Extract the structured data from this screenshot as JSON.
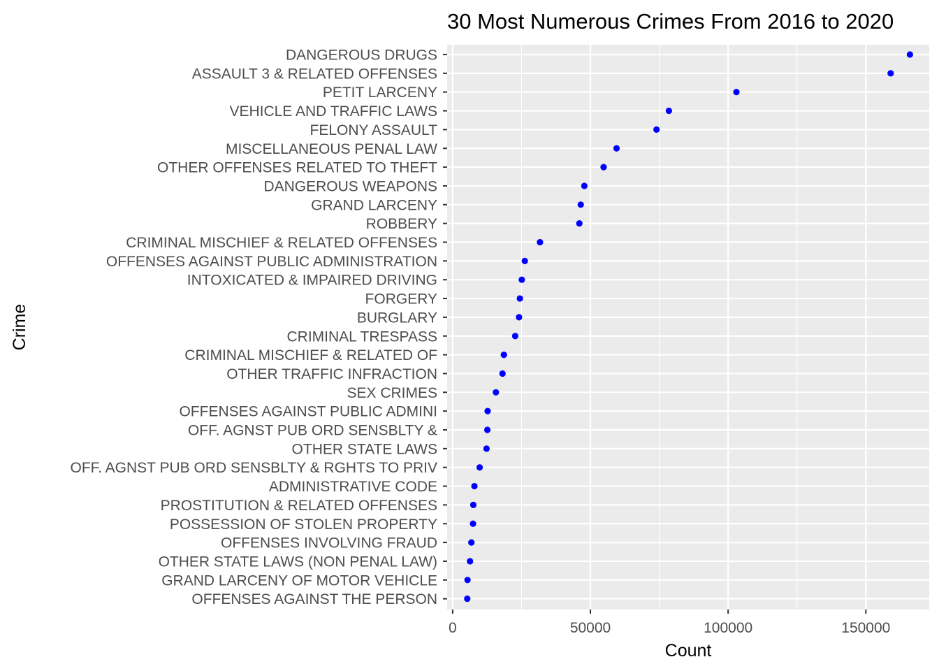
{
  "chart_data": {
    "type": "scatter",
    "title": "30 Most Numerous Crimes From 2016 to 2020",
    "xlabel": "Count",
    "ylabel": "Crime",
    "xlim": [
      -2000,
      173000
    ],
    "x_ticks": [
      0,
      50000,
      100000,
      150000
    ],
    "x_tick_labels": [
      "0",
      "50000",
      "100000",
      "150000"
    ],
    "grid": true,
    "point_color": "#0000ff",
    "panel_color": "#ebebeb",
    "categories": [
      "DANGEROUS DRUGS",
      "ASSAULT 3 & RELATED OFFENSES",
      "PETIT LARCENY",
      "VEHICLE AND TRAFFIC LAWS",
      "FELONY ASSAULT",
      "MISCELLANEOUS PENAL LAW",
      "OTHER OFFENSES RELATED TO THEFT",
      "DANGEROUS WEAPONS",
      "GRAND LARCENY",
      "ROBBERY",
      "CRIMINAL MISCHIEF & RELATED OFFENSES",
      "OFFENSES AGAINST PUBLIC ADMINISTRATION",
      "INTOXICATED & IMPAIRED DRIVING",
      "FORGERY",
      "BURGLARY",
      "CRIMINAL TRESPASS",
      "CRIMINAL MISCHIEF & RELATED OF",
      "OTHER TRAFFIC INFRACTION",
      "SEX CRIMES",
      "OFFENSES AGAINST PUBLIC ADMINI",
      "OFF. AGNST PUB ORD SENSBLTY &",
      "OTHER STATE LAWS",
      "OFF. AGNST PUB ORD SENSBLTY & RGHTS TO PRIV",
      "ADMINISTRATIVE CODE",
      "PROSTITUTION & RELATED OFFENSES",
      "POSSESSION OF STOLEN PROPERTY",
      "OFFENSES INVOLVING FRAUD",
      "OTHER STATE LAWS (NON PENAL LAW)",
      "GRAND LARCENY OF MOTOR VEHICLE",
      "OFFENSES AGAINST THE PERSON"
    ],
    "values": [
      166000,
      159000,
      103000,
      78500,
      74000,
      59500,
      54800,
      47800,
      46500,
      46000,
      31700,
      26200,
      25100,
      24400,
      24100,
      22700,
      18600,
      18100,
      15700,
      12700,
      12600,
      12300,
      9800,
      7900,
      7500,
      7400,
      6800,
      6300,
      5400,
      5300
    ]
  }
}
